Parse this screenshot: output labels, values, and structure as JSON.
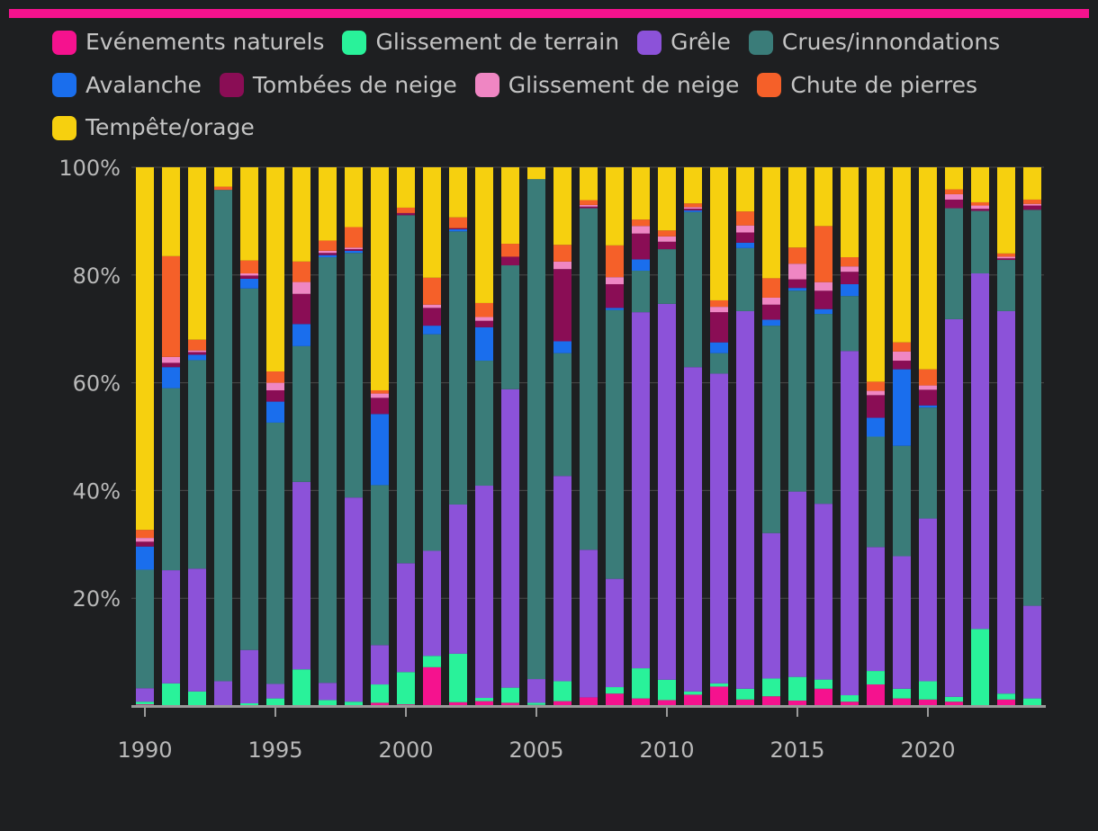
{
  "colors": {
    "top_bar": "#f5128e",
    "grid": "#4a4a4a",
    "axis": "#9a9a9a",
    "tick_text": "#b9b9b9"
  },
  "chart_data": {
    "type": "bar",
    "stacked": true,
    "normalized": true,
    "title": "",
    "xlabel": "",
    "ylabel": "",
    "ylim": [
      0,
      100
    ],
    "y_ticks": [
      20,
      40,
      60,
      80,
      100
    ],
    "y_tick_labels": [
      "20%",
      "40%",
      "60%",
      "80%",
      "100%"
    ],
    "x_tick_labels": [
      "1990",
      "1995",
      "2000",
      "2005",
      "2010",
      "2015",
      "2020"
    ],
    "categories": [
      1990,
      1991,
      1992,
      1993,
      1994,
      1995,
      1996,
      1997,
      1998,
      1999,
      2000,
      2001,
      2002,
      2003,
      2004,
      2005,
      2006,
      2007,
      2008,
      2009,
      2010,
      2011,
      2012,
      2013,
      2014,
      2015,
      2016,
      2017,
      2018,
      2019,
      2020,
      2021,
      2022,
      2023,
      2024
    ],
    "grid": true,
    "legend_position": "top",
    "series": [
      {
        "name": "Evénements naturels",
        "color": "#f5128e",
        "values": [
          0.3,
          0,
          0,
          0,
          0,
          0,
          0,
          0,
          0,
          0.6,
          0.3,
          7.2,
          0.7,
          0.9,
          0.6,
          0.2,
          0.9,
          1.6,
          2.3,
          1.4,
          1.1,
          2.1,
          3.6,
          1.2,
          1.8,
          1,
          3.2,
          0.8,
          4,
          1.4,
          1.2,
          0.8,
          0,
          1.2,
          0
        ]
      },
      {
        "name": "Glissement de terrain",
        "color": "#29f29a",
        "values": [
          0.5,
          4.2,
          2.7,
          0,
          0.5,
          1.4,
          6.8,
          1.1,
          0.8,
          3.4,
          6,
          2.1,
          9,
          0.6,
          2.8,
          0.4,
          3.7,
          0,
          1.2,
          5.6,
          3.8,
          0.6,
          0.6,
          2,
          3.3,
          4.4,
          1.7,
          1.2,
          2.5,
          1.8,
          3.4,
          0.9,
          14.3,
          1.1,
          1.4
        ]
      },
      {
        "name": "Grêle",
        "color": "#8c52d9",
        "values": [
          2.5,
          21,
          22.8,
          4.6,
          9.9,
          2.7,
          34.8,
          3.2,
          37.9,
          7.3,
          20.2,
          19.5,
          27.7,
          39.4,
          55.4,
          4.4,
          38.1,
          27.4,
          20.1,
          66.1,
          70.2,
          60.2,
          57.5,
          70.1,
          27,
          34.4,
          32.6,
          63.9,
          23,
          24.6,
          30.2,
          70.1,
          66,
          71,
          17.2
        ]
      },
      {
        "name": "Crues/innondations",
        "color": "#3a7c79",
        "values": [
          22,
          33.8,
          38.7,
          91.2,
          67.1,
          48.5,
          25.2,
          79,
          45.4,
          29.7,
          64.6,
          40.2,
          50.7,
          23.2,
          23,
          92.8,
          22.8,
          63.4,
          49.9,
          7.7,
          10.2,
          28.8,
          3.8,
          11.7,
          38.5,
          37.3,
          35.2,
          10.2,
          20.5,
          20.5,
          20.6,
          20.6,
          11.6,
          9.5,
          73.5
        ]
      },
      {
        "name": "Avalanche",
        "color": "#1a6eed",
        "values": [
          4.3,
          3.9,
          1,
          0,
          1.8,
          3.9,
          4.1,
          0.4,
          0.4,
          13.2,
          0,
          1.6,
          0.4,
          6.2,
          0,
          0,
          2.2,
          0,
          0.4,
          2.1,
          0,
          0.3,
          2,
          1,
          1.1,
          0.5,
          0.9,
          2.2,
          3.5,
          14.2,
          0.4,
          0,
          0,
          0,
          0
        ]
      },
      {
        "name": "Tombées de neige",
        "color": "#8a0d55",
        "values": [
          0.9,
          0.8,
          0.5,
          0,
          0.6,
          2.1,
          5.6,
          0.4,
          0.3,
          3,
          0.4,
          3.3,
          0.2,
          1.2,
          1.6,
          0,
          13.4,
          0.3,
          4.4,
          4.8,
          1.4,
          0.3,
          5.6,
          1.9,
          2.8,
          1.6,
          3.4,
          2.3,
          4.2,
          1.6,
          2.9,
          1.6,
          0.4,
          0.3,
          0.8
        ]
      },
      {
        "name": "Glissement de neige",
        "color": "#ef86c3",
        "values": [
          0.7,
          1.1,
          0.3,
          0,
          0.4,
          1.4,
          2.2,
          0.4,
          0.3,
          0.8,
          0,
          0.6,
          0,
          0.7,
          0,
          0,
          1.4,
          0.3,
          1.3,
          1.4,
          1,
          0.3,
          1,
          1.3,
          1.3,
          2.9,
          1.6,
          1,
          0.8,
          1.7,
          0.8,
          1,
          0.6,
          0.3,
          0.3
        ]
      },
      {
        "name": "Chute de pierres",
        "color": "#f56029",
        "values": [
          1.5,
          18.7,
          2,
          0.6,
          2.4,
          2.1,
          3.8,
          1.9,
          3.8,
          0.6,
          1,
          5,
          2,
          2.6,
          2.4,
          0,
          3.1,
          0.9,
          5.9,
          1.2,
          1.1,
          0.7,
          1.2,
          2.6,
          3.6,
          3,
          10.4,
          1.7,
          1.7,
          1.7,
          3,
          0.9,
          0.6,
          0.6,
          0.8
        ]
      },
      {
        "name": "Tempête/orage",
        "color": "#f6d00f",
        "values": [
          67.3,
          16.5,
          32,
          3.6,
          17.3,
          37.9,
          17.5,
          13.6,
          11.1,
          41.4,
          7.5,
          20.5,
          9.3,
          25.2,
          14.2,
          2.2,
          14.4,
          6.1,
          14.5,
          9.7,
          11.8,
          6.7,
          24.7,
          8.2,
          20.6,
          14.9,
          10.9,
          16.7,
          39.8,
          32.5,
          37.5,
          4.1,
          6.5,
          16,
          6
        ]
      }
    ]
  }
}
